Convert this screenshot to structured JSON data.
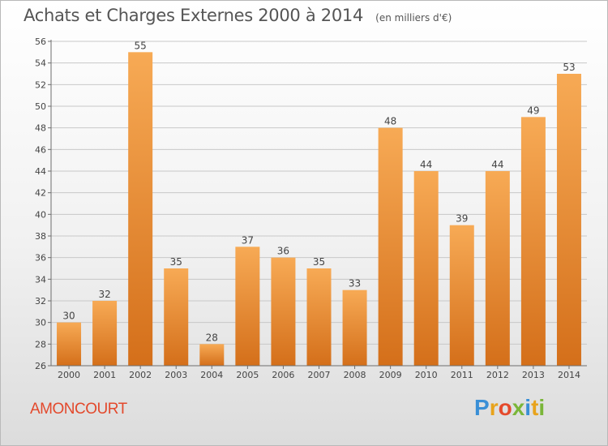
{
  "header": {
    "title": "Achats et Charges Externes 2000 à 2014",
    "subtitle": "(en milliers d'€)"
  },
  "footer": {
    "commune": "AMONCOURT",
    "brand": "Proxiti",
    "brand_letters": [
      {
        "ch": "P",
        "color": "#3a8fd6"
      },
      {
        "ch": "r",
        "color": "#e8a31c"
      },
      {
        "ch": "o",
        "color": "#e54a2c"
      },
      {
        "ch": "x",
        "color": "#7ab639"
      },
      {
        "ch": "i",
        "color": "#3a8fd6"
      },
      {
        "ch": "t",
        "color": "#e8a31c"
      },
      {
        "ch": "i",
        "color": "#7ab639"
      }
    ]
  },
  "colors": {
    "bar_light": "#f7aa55",
    "bar_dark": "#d46f1a",
    "axis": "#6e6e6e",
    "grid": "#c8c8c8",
    "text": "#444444"
  },
  "chart_data": {
    "type": "bar",
    "title": "Achats et Charges Externes 2000 à 2014",
    "subtitle": "(en milliers d'€)",
    "categories": [
      "2000",
      "2001",
      "2002",
      "2003",
      "2004",
      "2005",
      "2006",
      "2007",
      "2008",
      "2009",
      "2010",
      "2011",
      "2012",
      "2013",
      "2014"
    ],
    "values": [
      30,
      32,
      55,
      35,
      28,
      37,
      36,
      35,
      33,
      48,
      44,
      39,
      44,
      49,
      53
    ],
    "ylim": [
      26,
      56
    ],
    "yticks": [
      26,
      28,
      30,
      32,
      34,
      36,
      38,
      40,
      42,
      44,
      46,
      48,
      50,
      52,
      54,
      56
    ],
    "grid": true,
    "data_labels": true
  }
}
